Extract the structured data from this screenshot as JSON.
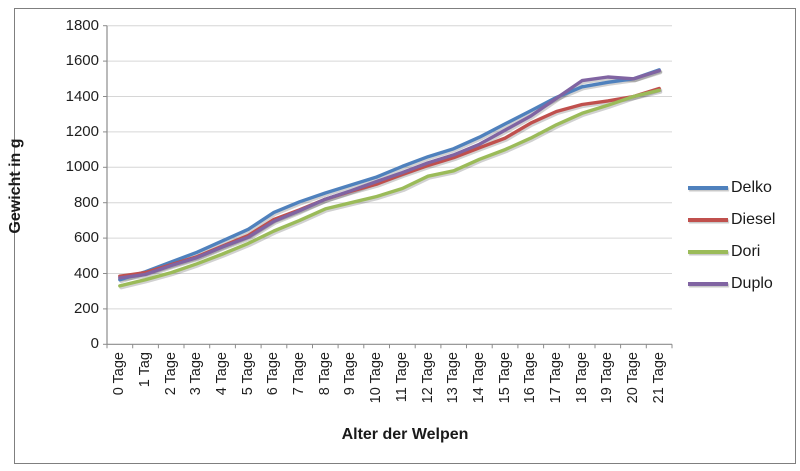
{
  "chart_data": {
    "type": "line",
    "title": "",
    "xlabel": "Alter der Welpen",
    "ylabel": "Gewicht in g",
    "categories": [
      "0 Tage",
      "1 Tag",
      "2 Tage",
      "3 Tage",
      "4 Tage",
      "5 Tage",
      "6 Tage",
      "7 Tage",
      "8 Tage",
      "9 Tage",
      "10 Tage",
      "11 Tage",
      "12 Tage",
      "13 Tage",
      "14 Tage",
      "15 Tage",
      "16 Tage",
      "17 Tage",
      "18 Tage",
      "19 Tage",
      "20 Tage",
      "21 Tage"
    ],
    "series": [
      {
        "name": "Delko",
        "color": "#4F81BD",
        "values": [
          365,
          410,
          465,
          520,
          585,
          650,
          745,
          805,
          855,
          900,
          945,
          1005,
          1060,
          1105,
          1170,
          1245,
          1320,
          1395,
          1455,
          1480,
          1500,
          1550
        ]
      },
      {
        "name": "Diesel",
        "color": "#C0504D",
        "values": [
          385,
          405,
          450,
          495,
          555,
          615,
          705,
          760,
          820,
          865,
          905,
          960,
          1010,
          1055,
          1110,
          1165,
          1250,
          1315,
          1355,
          1375,
          1400,
          1445
        ]
      },
      {
        "name": "Dori",
        "color": "#9BBB59",
        "values": [
          330,
          365,
          405,
          455,
          510,
          570,
          640,
          700,
          765,
          800,
          835,
          880,
          950,
          980,
          1045,
          1100,
          1165,
          1240,
          1305,
          1350,
          1400,
          1435
        ]
      },
      {
        "name": "Duplo",
        "color": "#8064A2",
        "values": [
          375,
          395,
          445,
          490,
          550,
          605,
          695,
          755,
          820,
          868,
          920,
          970,
          1025,
          1070,
          1130,
          1210,
          1290,
          1390,
          1490,
          1510,
          1500,
          1545
        ]
      }
    ],
    "ylim": [
      0,
      1800
    ],
    "ytick_step": 200,
    "grid": true,
    "legend_position": "right"
  },
  "colors": {
    "gridline": "#D6D6D6",
    "axis": "#8C8C8C",
    "text": "#1F1F1F",
    "frame_border": "#7F7F7F",
    "background": "#FFFFFF"
  }
}
